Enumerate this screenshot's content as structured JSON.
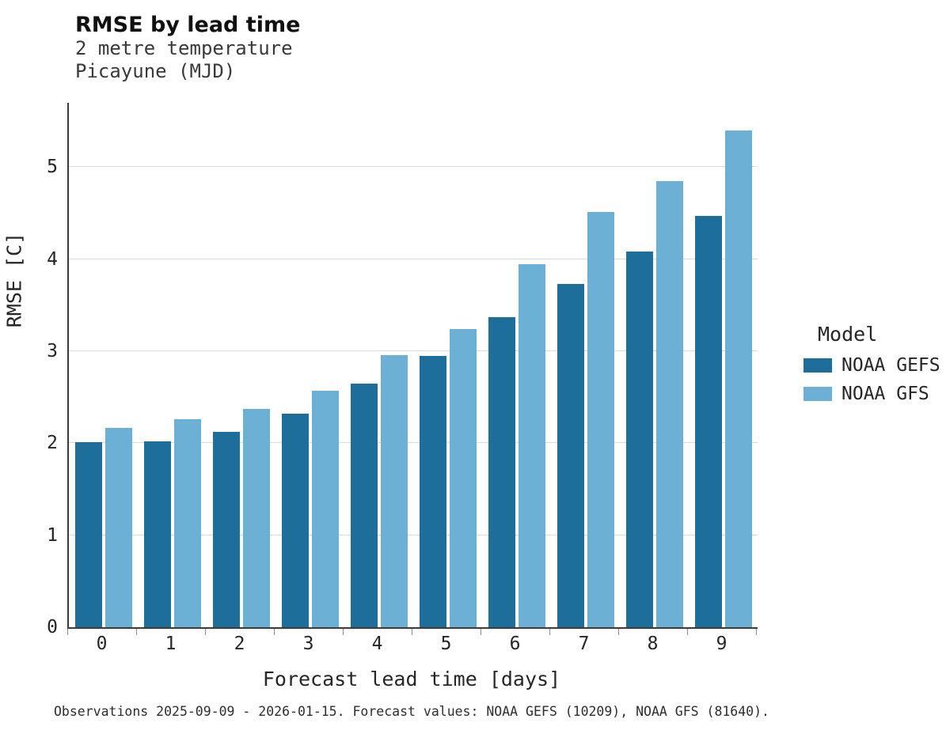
{
  "chart_data": {
    "type": "bar",
    "title": "RMSE by lead time",
    "subtitle": [
      "2 metre temperature",
      "Picayune (MJD)"
    ],
    "xlabel": "Forecast lead time [days]",
    "ylabel": "RMSE [C]",
    "categories": [
      "0",
      "1",
      "2",
      "3",
      "4",
      "5",
      "6",
      "7",
      "8",
      "9"
    ],
    "series": [
      {
        "name": "NOAA GEFS",
        "color": "#1e6e9c",
        "values": [
          2.01,
          2.02,
          2.12,
          2.32,
          2.65,
          2.95,
          3.37,
          3.73,
          4.08,
          4.47
        ]
      },
      {
        "name": "NOAA GFS",
        "color": "#6cb0d6",
        "values": [
          2.17,
          2.26,
          2.37,
          2.57,
          2.96,
          3.24,
          3.95,
          4.51,
          4.85,
          5.4
        ]
      }
    ],
    "ylim": [
      0,
      5.7
    ],
    "yticks": [
      0,
      1,
      2,
      3,
      4,
      5
    ],
    "grid": "horizontal",
    "legend_title": "Model",
    "legend_position": "right",
    "caption": "Observations 2025-09-09 - 2026-01-15. Forecast values: NOAA GEFS (10209), NOAA GFS (81640)."
  }
}
